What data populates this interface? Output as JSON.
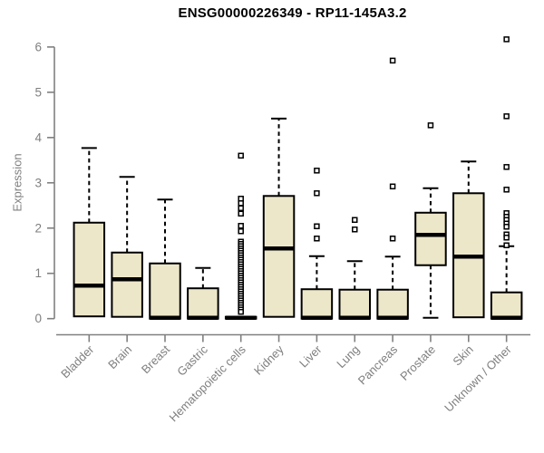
{
  "colors": {
    "box_fill": "#EDE7C9",
    "box_stroke": "#000000",
    "median_stroke": "#000000",
    "whisker_stroke": "#000000",
    "outlier_stroke": "#000000",
    "outlier_fill": "#FFFFFF",
    "axis": "#808080",
    "axis_text": "#7F7F7F",
    "title_text": "#000000",
    "background": "#FFFFFF"
  },
  "chart_data": {
    "type": "boxplot",
    "title": "ENSG00000226349 - RP11-145A3.2",
    "ylabel": "Expression",
    "xlabel": "",
    "ylim": [
      0,
      6
    ],
    "yticks": [
      "0",
      "1",
      "2",
      "3",
      "4",
      "5",
      "6"
    ],
    "grid": false,
    "legend": false,
    "categories": [
      "Bladder",
      "Brain",
      "Breast",
      "Gastric",
      "Hematopoietic cells",
      "Kidney",
      "Liver",
      "Lung",
      "Pancreas",
      "Prostate",
      "Skin",
      "Unknown / Other"
    ],
    "series": [
      {
        "name": "Bladder",
        "whisker_low": null,
        "q1": 0.05,
        "median": 0.73,
        "q3": 2.12,
        "whisker_high": 3.77,
        "outliers": []
      },
      {
        "name": "Brain",
        "whisker_low": null,
        "q1": 0.04,
        "median": 0.87,
        "q3": 1.46,
        "whisker_high": 3.13,
        "outliers": []
      },
      {
        "name": "Breast",
        "whisker_low": null,
        "q1": 0.0,
        "median": 0.02,
        "q3": 1.22,
        "whisker_high": 2.63,
        "outliers": []
      },
      {
        "name": "Gastric",
        "whisker_low": null,
        "q1": 0.0,
        "median": 0.02,
        "q3": 0.67,
        "whisker_high": 1.12,
        "outliers": []
      },
      {
        "name": "Hematopoietic cells",
        "whisker_low": null,
        "q1": 0.0,
        "median": 0.02,
        "q3": 0.04,
        "whisker_high": null,
        "outliers": [
          3.6,
          2.65,
          2.55,
          2.44,
          2.32,
          2.05,
          1.93,
          1.7,
          1.65,
          1.6,
          1.55,
          1.5,
          1.45,
          1.4,
          1.35,
          1.3,
          1.25,
          1.2,
          1.15,
          1.1,
          1.05,
          1.0,
          0.95,
          0.9,
          0.85,
          0.8,
          0.75,
          0.7,
          0.65,
          0.6,
          0.55,
          0.5,
          0.45,
          0.4,
          0.35,
          0.3,
          0.25,
          0.2,
          0.15
        ]
      },
      {
        "name": "Kidney",
        "whisker_low": null,
        "q1": 0.04,
        "median": 1.55,
        "q3": 2.71,
        "whisker_high": 4.42,
        "outliers": []
      },
      {
        "name": "Liver",
        "whisker_low": null,
        "q1": 0.0,
        "median": 0.02,
        "q3": 0.65,
        "whisker_high": 1.38,
        "outliers": [
          3.27,
          2.77,
          2.04,
          1.77
        ]
      },
      {
        "name": "Lung",
        "whisker_low": null,
        "q1": 0.0,
        "median": 0.02,
        "q3": 0.64,
        "whisker_high": 1.27,
        "outliers": [
          2.18,
          1.97
        ]
      },
      {
        "name": "Pancreas",
        "whisker_low": null,
        "q1": 0.0,
        "median": 0.02,
        "q3": 0.64,
        "whisker_high": 1.37,
        "outliers": [
          5.7,
          2.92,
          1.77
        ]
      },
      {
        "name": "Prostate",
        "whisker_low": 0.02,
        "q1": 1.18,
        "median": 1.85,
        "q3": 2.34,
        "whisker_high": 2.88,
        "outliers": [
          4.27
        ]
      },
      {
        "name": "Skin",
        "whisker_low": null,
        "q1": 0.03,
        "median": 1.37,
        "q3": 2.77,
        "whisker_high": 3.47,
        "outliers": []
      },
      {
        "name": "Unknown / Other",
        "whisker_low": null,
        "q1": 0.0,
        "median": 0.02,
        "q3": 0.58,
        "whisker_high": 1.6,
        "outliers": [
          6.17,
          4.47,
          3.35,
          2.85,
          2.33,
          2.25,
          2.18,
          2.1,
          2.03,
          1.86,
          1.79,
          1.62
        ]
      }
    ]
  }
}
